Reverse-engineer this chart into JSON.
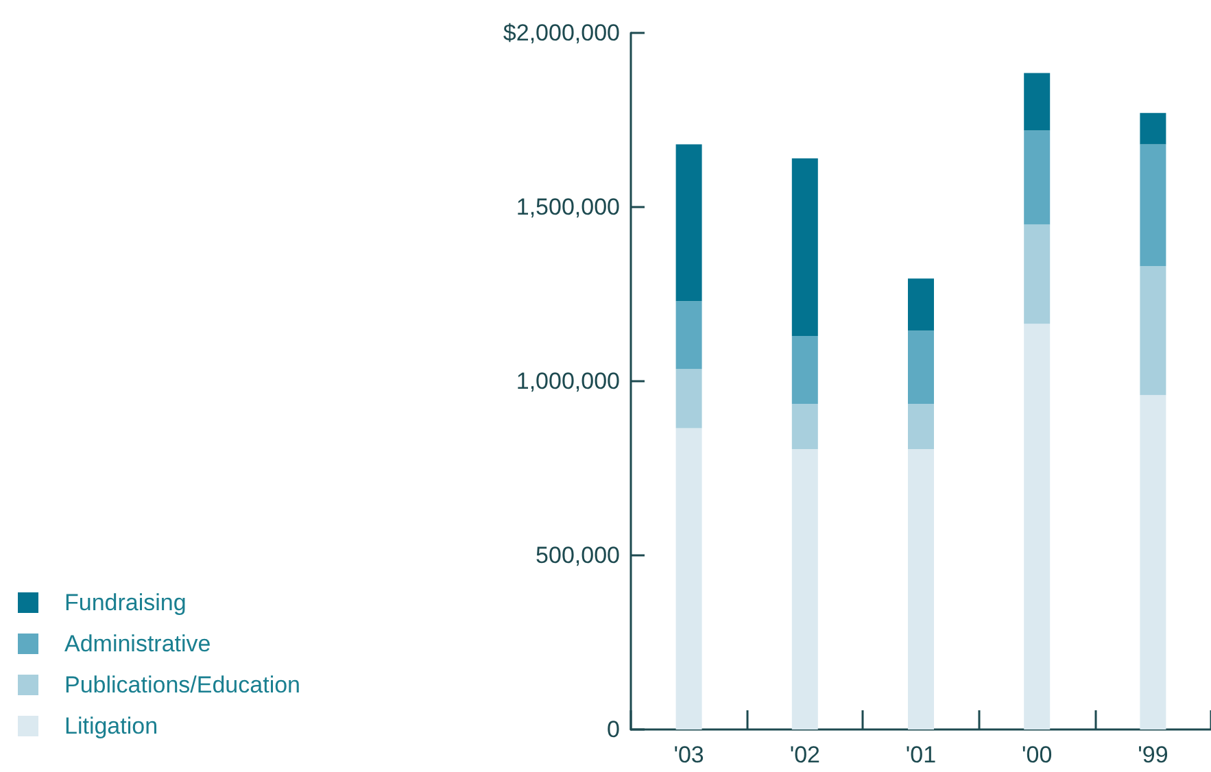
{
  "chart_data": {
    "type": "bar",
    "stacked": true,
    "categories": [
      "'03",
      "'02",
      "'01",
      "'00",
      "'99"
    ],
    "series": [
      {
        "name": "Litigation",
        "color": "#dbe9f0",
        "values": [
          865000,
          805000,
          805000,
          1165000,
          960000
        ]
      },
      {
        "name": "Publications/Education",
        "color": "#a8cfdd",
        "values": [
          170000,
          130000,
          130000,
          285000,
          370000
        ]
      },
      {
        "name": "Administrative",
        "color": "#5eaac2",
        "values": [
          195000,
          195000,
          210000,
          270000,
          350000
        ]
      },
      {
        "name": "Fundraising",
        "color": "#037390",
        "values": [
          450000,
          510000,
          150000,
          165000,
          90000
        ]
      }
    ],
    "ylim": [
      0,
      2000000
    ],
    "yticks": [
      0,
      {
        "value": 500000,
        "label": "500,000"
      },
      {
        "value": 1000000,
        "label": "1,000,000"
      },
      {
        "value": 1500000,
        "label": "1,500,000"
      },
      {
        "value": 2000000,
        "label": "$2,000,000"
      }
    ],
    "grid": false,
    "legend": "bottom left"
  }
}
